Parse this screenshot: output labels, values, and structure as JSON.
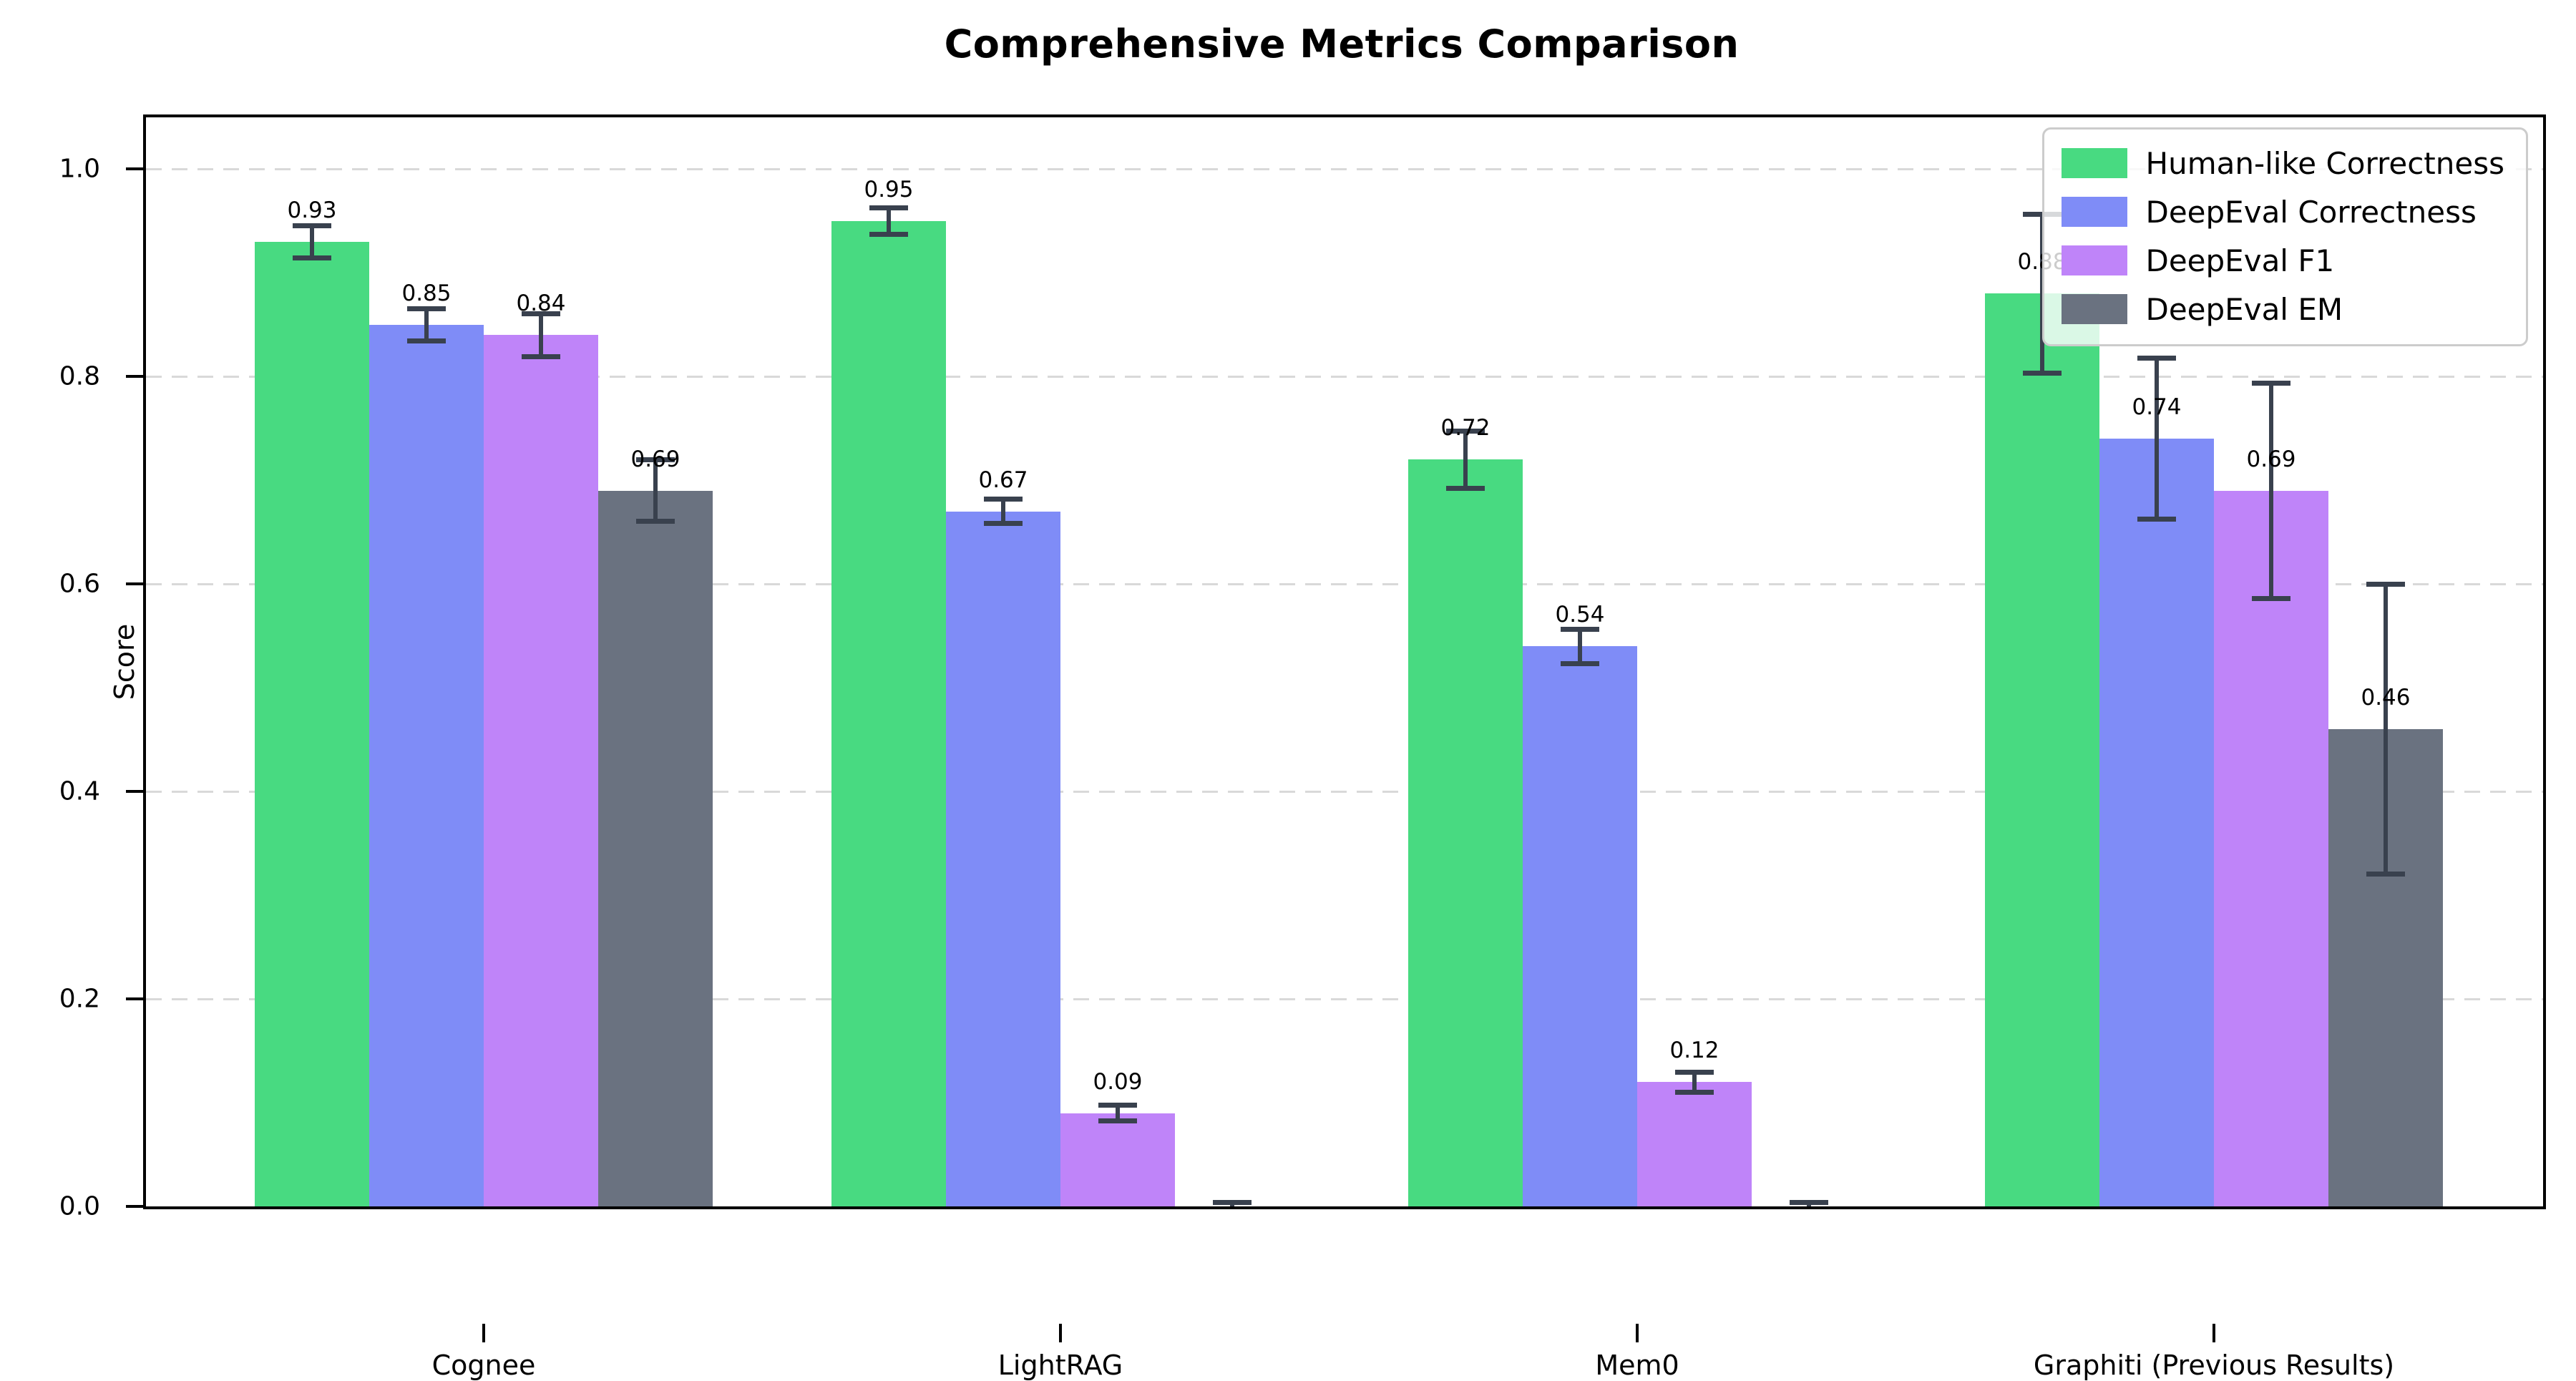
{
  "chart_data": {
    "type": "bar",
    "title": "Comprehensive Metrics Comparison",
    "xlabel": "",
    "ylabel": "Score",
    "ylim": [
      0,
      1.05
    ],
    "grid": "horizontal-dashed",
    "grid_color": "#d9d9d9",
    "error_bar_color": "#39414e",
    "legend_position": "upper right",
    "yticks": [
      {
        "value": 0.0,
        "label": "0.0"
      },
      {
        "value": 0.2,
        "label": "0.2"
      },
      {
        "value": 0.4,
        "label": "0.4"
      },
      {
        "value": 0.6,
        "label": "0.6"
      },
      {
        "value": 0.8,
        "label": "0.8"
      },
      {
        "value": 1.0,
        "label": "1.0"
      }
    ],
    "categories": [
      "Cognee",
      "LightRAG",
      "Mem0",
      "Graphiti (Previous Results)"
    ],
    "series": [
      {
        "name": "Human-like Correctness",
        "color": "#48da81",
        "values": [
          0.93,
          0.95,
          0.72,
          0.88
        ],
        "errors": [
          0.016,
          0.013,
          0.028,
          0.077
        ],
        "labels": [
          "0.93",
          "0.95",
          "0.72",
          "0.88"
        ]
      },
      {
        "name": "DeepEval Correctness",
        "color": "#7f8cf7",
        "values": [
          0.85,
          0.67,
          0.54,
          0.74
        ],
        "errors": [
          0.016,
          0.012,
          0.017,
          0.078
        ],
        "labels": [
          "0.85",
          "0.67",
          "0.54",
          "0.74"
        ]
      },
      {
        "name": "DeepEval F1",
        "color": "#bf84f9",
        "values": [
          0.84,
          0.09,
          0.12,
          0.69
        ],
        "errors": [
          0.021,
          0.008,
          0.01,
          0.104
        ],
        "labels": [
          "0.84",
          "0.09",
          "0.12",
          "0.69"
        ]
      },
      {
        "name": "DeepEval EM",
        "color": "#6a7280",
        "values": [
          0.69,
          0.0,
          0.0,
          0.46
        ],
        "errors": [
          0.03,
          0.004,
          0.004,
          0.14
        ],
        "labels": [
          "0.69",
          "",
          "",
          "0.46"
        ]
      }
    ]
  }
}
